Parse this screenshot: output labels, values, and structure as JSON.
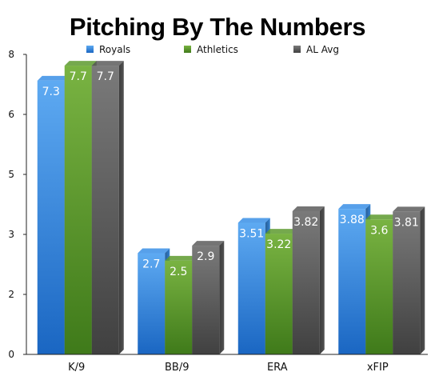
{
  "chart_data": {
    "type": "bar",
    "title": "Pitching By The Numbers",
    "categories": [
      "K/9",
      "BB/9",
      "ERA",
      "xFIP"
    ],
    "series": [
      {
        "name": "Royals",
        "values": [
          7.3,
          2.7,
          3.51,
          3.88
        ],
        "labels": [
          "7.3",
          "2.7",
          "3.51",
          "3.88"
        ],
        "color": "#3a8fe6"
      },
      {
        "name": "Athletics",
        "values": [
          7.7,
          2.5,
          3.22,
          3.6
        ],
        "labels": [
          "7.7",
          "2.5",
          "3.22",
          "3.6"
        ],
        "color": "#5d9a2e"
      },
      {
        "name": "AL Avg",
        "values": [
          7.7,
          2.9,
          3.82,
          3.81
        ],
        "labels": [
          "7.7",
          "2.9",
          "3.82",
          "3.81"
        ],
        "color": "#5c5c5c"
      }
    ],
    "y_ticks": [
      "0",
      "2",
      "3",
      "5",
      "6",
      "8"
    ],
    "ylim": [
      0,
      8
    ],
    "legend_position": "top",
    "grid": false
  }
}
